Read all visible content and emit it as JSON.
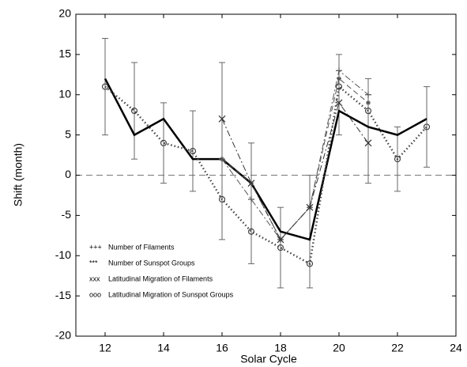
{
  "chart_data": {
    "type": "line",
    "xlabel": "Solar Cycle",
    "ylabel": "Shift (month)",
    "x": [
      12,
      13,
      14,
      15,
      16,
      17,
      18,
      19,
      20,
      21,
      22,
      23
    ],
    "xlim": [
      11,
      24
    ],
    "xticks": [
      12,
      14,
      16,
      18,
      20,
      22,
      24
    ],
    "ylim": [
      -20,
      20
    ],
    "yticks": [
      -20,
      -15,
      -10,
      -5,
      0,
      5,
      10,
      15,
      20
    ],
    "reference_line": 0,
    "legend_position": "lower left",
    "series": [
      {
        "color": "#000000",
        "style": "solid",
        "marker": "none",
        "values": [
          12,
          5,
          7,
          2,
          2,
          -1,
          -7,
          -8,
          8,
          6,
          5,
          7
        ]
      },
      {
        "name": "Number of Filaments",
        "legend_marker": "+++",
        "color": "#555555",
        "style": "dashdot",
        "marker": "plus",
        "values": [
          null,
          null,
          null,
          null,
          2,
          -3,
          -8,
          -4,
          13,
          10,
          null,
          null
        ]
      },
      {
        "name": "Number of Sunspot Groups",
        "legend_marker": "***",
        "color": "#555555",
        "style": "dashed",
        "marker": "star",
        "values": [
          null,
          null,
          null,
          null,
          2,
          -1,
          -8,
          -4,
          12,
          9,
          null,
          null
        ]
      },
      {
        "name": "Latitudinal Migration of Filaments",
        "legend_marker": "xxx",
        "color": "#333333",
        "style": "dashdot",
        "marker": "cross",
        "values": [
          null,
          null,
          null,
          null,
          7,
          -1,
          -8,
          -4,
          9,
          4,
          null,
          null
        ]
      },
      {
        "name": "Latitudinal Migration of Sunspot Groups",
        "legend_marker": "ooo",
        "color": "#444444",
        "style": "dotted",
        "marker": "circle",
        "values": [
          11,
          8,
          4,
          3,
          -3,
          -7,
          -9,
          -11,
          11,
          8,
          2,
          6
        ]
      }
    ],
    "error_bars": {
      "low": [
        5,
        2,
        -1,
        -2,
        -8,
        -11,
        -14,
        -14,
        5,
        -1,
        -2,
        1
      ],
      "high": [
        17,
        14,
        9,
        8,
        14,
        4,
        -4,
        0,
        15,
        12,
        6,
        11
      ]
    }
  }
}
